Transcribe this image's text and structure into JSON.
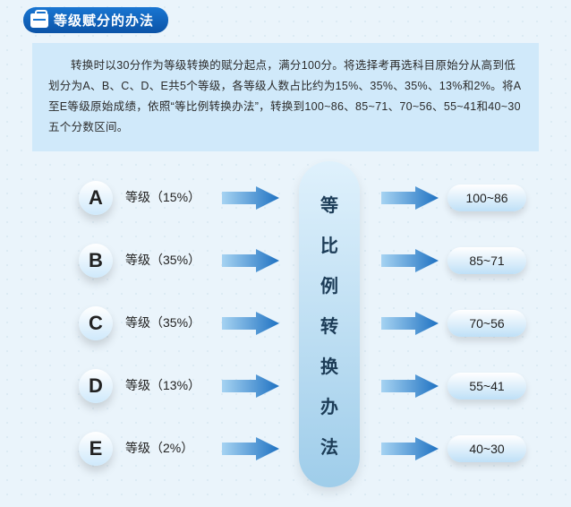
{
  "header": {
    "title": "等级赋分的办法"
  },
  "description": "转换时以30分作为等级转换的赋分起点，满分100分。将选择考再选科目原始分从高到低划分为A、B、C、D、E共5个等级，各等级人数占比约为15%、35%、35%、13%和2%。将A至E等级原始成绩，依照“等比例转换办法”，转换到100~86、85~71、70~56、55~41和40~30五个分数区间。",
  "colors": {
    "grade_pill_gradient_top": "#ffffff",
    "grade_pill_gradient_bottom": "#cfe9fb",
    "range_pill_gradient_top": "#ffffff",
    "range_pill_gradient_bottom": "#bfe0f7",
    "center_gradient_top": "#dff1fc",
    "center_gradient_bottom": "#9fcdea",
    "arrow_light": "#a6d3f2",
    "arrow_dark": "#1f72c2"
  },
  "center_label": "等比例转换办法",
  "grades": [
    {
      "letter": "A",
      "percent": "15%",
      "range": "100~86"
    },
    {
      "letter": "B",
      "percent": "35%",
      "range": "85~71"
    },
    {
      "letter": "C",
      "percent": "35%",
      "range": "70~56"
    },
    {
      "letter": "D",
      "percent": "13%",
      "range": "55~41"
    },
    {
      "letter": "E",
      "percent": "2%",
      "range": "40~30"
    }
  ],
  "label_template": "等级（{p}）"
}
